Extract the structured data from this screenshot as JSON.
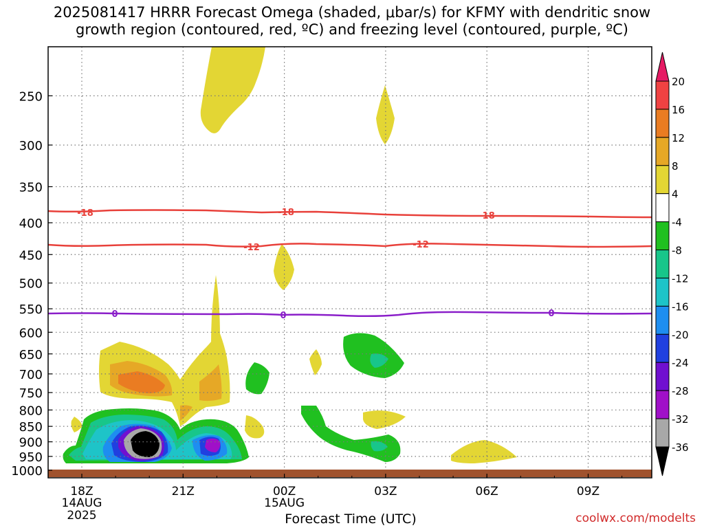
{
  "title": {
    "line1": "2025081417 HRRR Forecast Omega (shaded, μbar/s) for KFMY with dendritic snow",
    "line2": "growth region (contoured, red, ºC) and freezing level (contoured, purple, ºC)"
  },
  "credit": "coolwx.com/modelts",
  "colors": {
    "temp_contour": "#e8403a",
    "freezing_contour": "#8a1ec9",
    "ground": "#a0522d",
    "grid": "#777777"
  },
  "chart_data": {
    "type": "contour",
    "xlabel": "Forecast Time (UTC)",
    "x_ticks": [
      {
        "label": "18Z",
        "date": "14AUG",
        "year": "2025"
      },
      {
        "label": "21Z",
        "date": "",
        "year": ""
      },
      {
        "label": "00Z",
        "date": "15AUG",
        "year": ""
      },
      {
        "label": "03Z",
        "date": "",
        "year": ""
      },
      {
        "label": "06Z",
        "date": "",
        "year": ""
      },
      {
        "label": "09Z",
        "date": "",
        "year": ""
      }
    ],
    "y_ticks": [
      250,
      300,
      350,
      400,
      450,
      500,
      550,
      600,
      650,
      700,
      750,
      800,
      850,
      900,
      950,
      1000
    ],
    "y_scale": "log-pressure",
    "grid": true,
    "colorbar": {
      "ticks": [
        20,
        16,
        12,
        8,
        4,
        -4,
        -8,
        -12,
        -16,
        -20,
        -24,
        -28,
        -32,
        -36
      ],
      "colors": [
        "#e61b64",
        "#f04242",
        "#ea7c22",
        "#e6a826",
        "#e3d634",
        "#ffffff",
        "#20c020",
        "#18c68a",
        "#1ec4c8",
        "#1e8ef0",
        "#2040e0",
        "#7010d0",
        "#a010c8",
        "#a8a8a8",
        "#000000"
      ]
    },
    "contours": [
      {
        "level": "-18",
        "color": "temp"
      },
      {
        "level": "-12",
        "color": "temp"
      },
      {
        "level": "0",
        "color": "freezing"
      }
    ]
  }
}
